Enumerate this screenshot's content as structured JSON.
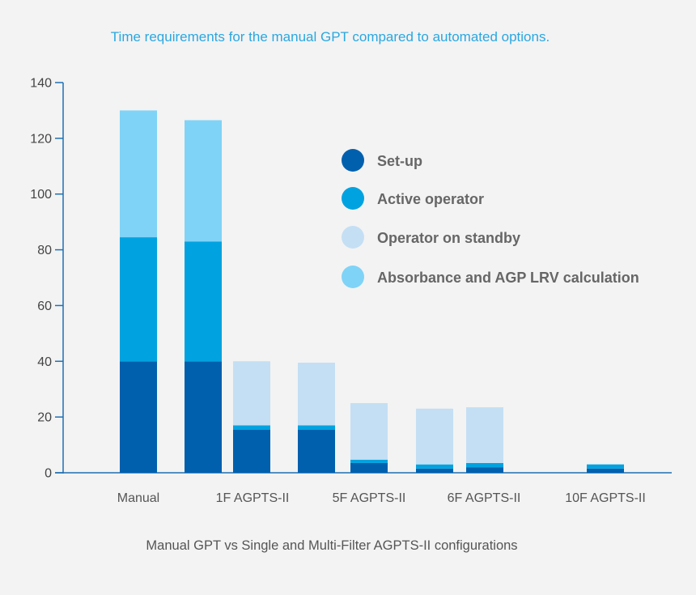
{
  "chart_data": {
    "type": "bar",
    "stacked": true,
    "title": "Time requirements for the manual GPT compared to automated options.",
    "xlabel": "Manual GPT vs Single and Multi-Filter AGPTS-II configurations",
    "ylabel": "",
    "ylim": [
      0,
      140
    ],
    "yticks": [
      0,
      20,
      40,
      60,
      80,
      100,
      120,
      140
    ],
    "category_labels": [
      "Manual",
      "1F AGPTS-II",
      "5F AGPTS-II",
      "6F AGPTS-II",
      "10F AGPTS-II"
    ],
    "bars": [
      {
        "label": "Manual",
        "values": [
          40,
          44.5,
          0,
          45.5
        ]
      },
      {
        "label": "Manual (2)",
        "values": [
          40,
          43,
          0,
          43.5
        ]
      },
      {
        "label": "1F AGPTS-II",
        "values": [
          15.5,
          1.5,
          23,
          0
        ]
      },
      {
        "label": "1F AGPTS-II (2)",
        "values": [
          15.5,
          1.5,
          22.5,
          0
        ]
      },
      {
        "label": "5F AGPTS-II",
        "values": [
          3.5,
          1.2,
          20.3,
          0
        ]
      },
      {
        "label": "6F AGPTS-II",
        "values": [
          1.5,
          1.5,
          20,
          0
        ]
      },
      {
        "label": "6F AGPTS-II (2)",
        "values": [
          2,
          1.5,
          20,
          0
        ]
      },
      {
        "label": "10F AGPTS-II",
        "values": [
          1.5,
          1.5,
          0,
          0
        ]
      }
    ],
    "series": [
      {
        "name": "Set-up",
        "color": "#0060ae"
      },
      {
        "name": "Active operator",
        "color": "#00a3e0"
      },
      {
        "name": "Operator on standby",
        "color": "#c4dff4"
      },
      {
        "name": "Absorbance and AGP LRV calculation",
        "color": "#7fd3f7"
      }
    ],
    "legend_position": "top-right",
    "axis_color": "#1f6fb2"
  }
}
